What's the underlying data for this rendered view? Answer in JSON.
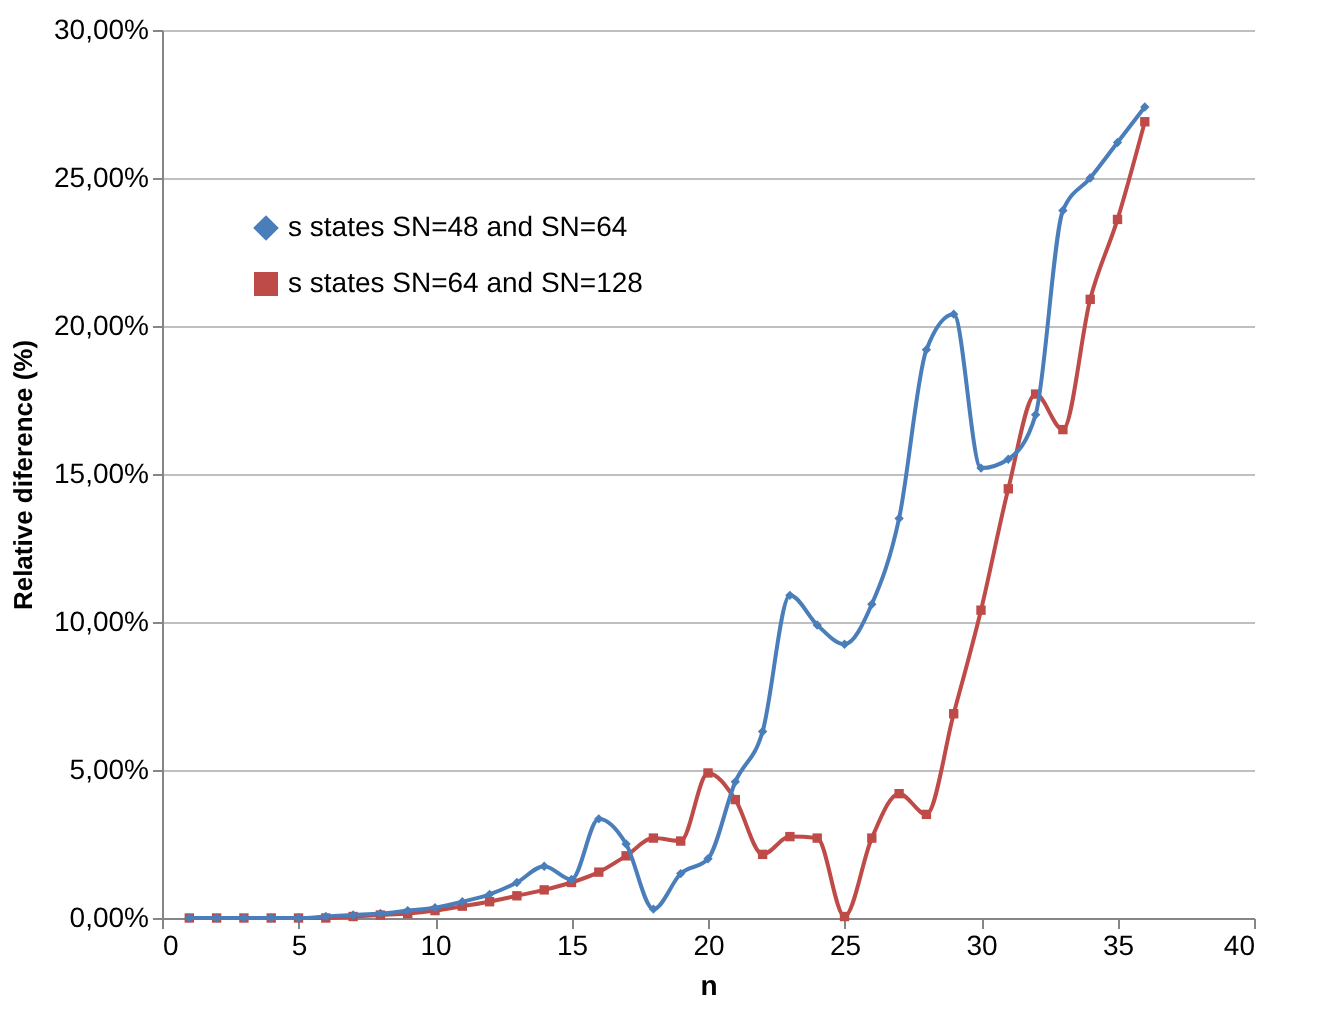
{
  "chart_data": {
    "type": "line",
    "xlabel": "n",
    "ylabel": "Relative diference (%)",
    "x": [
      1,
      2,
      3,
      4,
      5,
      6,
      7,
      8,
      9,
      10,
      11,
      12,
      13,
      14,
      15,
      16,
      17,
      18,
      19,
      20,
      21,
      22,
      23,
      24,
      25,
      26,
      27,
      28,
      29,
      30,
      31,
      32,
      33,
      34,
      35,
      36
    ],
    "series": [
      {
        "name": "s states   SN=48 and SN=64",
        "color": "#4a7ebb",
        "marker": "diamond",
        "values": [
          0,
          0,
          0,
          0,
          0,
          0.05,
          0.1,
          0.15,
          0.25,
          0.35,
          0.55,
          0.8,
          1.2,
          1.75,
          1.3,
          3.35,
          2.5,
          0.3,
          1.5,
          2.0,
          4.6,
          6.3,
          10.9,
          9.9,
          9.25,
          10.6,
          13.5,
          19.2,
          20.4,
          15.2,
          15.5,
          17.0,
          23.9,
          25.0,
          26.2,
          27.4
        ]
      },
      {
        "name": "s states SN=64 and SN=128",
        "color": "#be4b48",
        "marker": "square",
        "values": [
          0,
          0,
          0,
          0,
          0,
          0,
          0.05,
          0.1,
          0.15,
          0.25,
          0.4,
          0.55,
          0.75,
          0.95,
          1.2,
          1.55,
          2.1,
          2.7,
          2.6,
          4.9,
          4.0,
          2.15,
          2.75,
          2.7,
          0.05,
          2.7,
          4.2,
          3.5,
          6.9,
          10.4,
          14.5,
          17.7,
          16.5,
          20.9,
          23.6,
          26.9
        ]
      }
    ],
    "xlim": [
      0,
      40
    ],
    "xticks": [
      0,
      5,
      10,
      15,
      20,
      25,
      30,
      35,
      40
    ],
    "ylim": [
      0,
      30
    ],
    "yticks": [
      {
        "value": 0,
        "label": "0,00%"
      },
      {
        "value": 5,
        "label": "5,00%"
      },
      {
        "value": 10,
        "label": "10,00%"
      },
      {
        "value": 15,
        "label": "15,00%"
      },
      {
        "value": 20,
        "label": "20,00%"
      },
      {
        "value": 25,
        "label": "25,00%"
      },
      {
        "value": 30,
        "label": "30,00%"
      }
    ],
    "grid": "y",
    "legend": "top left",
    "line_style": "solid"
  }
}
